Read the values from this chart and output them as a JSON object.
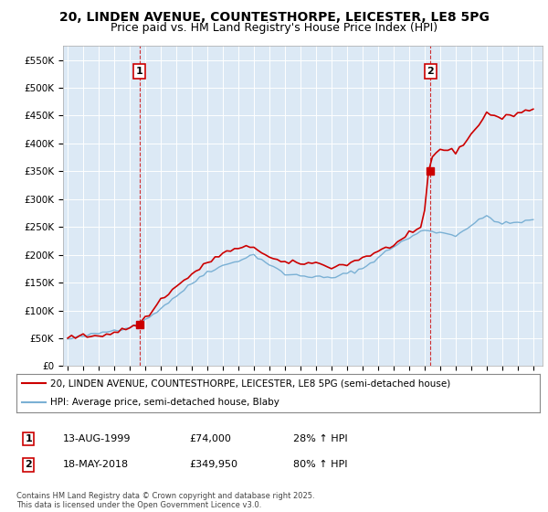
{
  "title": "20, LINDEN AVENUE, COUNTESTHORPE, LEICESTER, LE8 5PG",
  "subtitle": "Price paid vs. HM Land Registry's House Price Index (HPI)",
  "title_fontsize": 10,
  "subtitle_fontsize": 9,
  "background_color": "#ffffff",
  "plot_bg_color": "#dce9f5",
  "grid_color": "#ffffff",
  "ylim": [
    0,
    575000
  ],
  "yticks": [
    0,
    50000,
    100000,
    150000,
    200000,
    250000,
    300000,
    350000,
    400000,
    450000,
    500000,
    550000
  ],
  "ytick_labels": [
    "£0",
    "£50K",
    "£100K",
    "£150K",
    "£200K",
    "£250K",
    "£300K",
    "£350K",
    "£400K",
    "£450K",
    "£500K",
    "£550K"
  ],
  "xlim_start": 1994.7,
  "xlim_end": 2025.6,
  "xtick_years": [
    1995,
    1996,
    1997,
    1998,
    1999,
    2000,
    2001,
    2002,
    2003,
    2004,
    2005,
    2006,
    2007,
    2008,
    2009,
    2010,
    2011,
    2012,
    2013,
    2014,
    2015,
    2016,
    2017,
    2018,
    2019,
    2020,
    2021,
    2022,
    2023,
    2024,
    2025
  ],
  "price_paid_color": "#cc0000",
  "hpi_color": "#7ab0d4",
  "marker1_year": 1999.62,
  "marker1_value": 74000,
  "marker2_year": 2018.38,
  "marker2_value": 349950,
  "vline1_year": 1999.62,
  "vline2_year": 2018.38,
  "legend_text1": "20, LINDEN AVENUE, COUNTESTHORPE, LEICESTER, LE8 5PG (semi-detached house)",
  "legend_text2": "HPI: Average price, semi-detached house, Blaby",
  "annotation1_label": "1",
  "annotation2_label": "2",
  "table_row1": [
    "1",
    "13-AUG-1999",
    "£74,000",
    "28% ↑ HPI"
  ],
  "table_row2": [
    "2",
    "18-MAY-2018",
    "£349,950",
    "80% ↑ HPI"
  ],
  "footer": "Contains HM Land Registry data © Crown copyright and database right 2025.\nThis data is licensed under the Open Government Licence v3.0."
}
